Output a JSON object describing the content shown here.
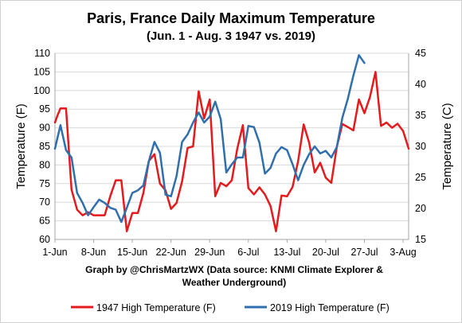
{
  "chart_data": {
    "type": "line",
    "title": "Paris, France Daily Maximum Temperature",
    "subtitle": "(Jun. 1 - Aug. 3 1947 vs. 2019)",
    "ylabel": "Temperature (F)",
    "y2label": "Temperature (C)",
    "ylim": [
      60,
      110
    ],
    "y2lim": [
      15,
      45
    ],
    "yticks": [
      "60",
      "65",
      "70",
      "75",
      "80",
      "85",
      "90",
      "95",
      "100",
      "105",
      "110"
    ],
    "y2ticks": [
      "15",
      "20",
      "25",
      "30",
      "35",
      "40",
      "45"
    ],
    "xlim": [
      1,
      65
    ],
    "xticks": [
      {
        "day": 1,
        "label": "1-Jun"
      },
      {
        "day": 8,
        "label": "8-Jun"
      },
      {
        "day": 15,
        "label": "15-Jun"
      },
      {
        "day": 22,
        "label": "22-Jun"
      },
      {
        "day": 29,
        "label": "29-Jun"
      },
      {
        "day": 36,
        "label": "6-Jul"
      },
      {
        "day": 43,
        "label": "13-Jul"
      },
      {
        "day": 50,
        "label": "20-Jul"
      },
      {
        "day": 57,
        "label": "27-Jul"
      },
      {
        "day": 64,
        "label": "3-Aug"
      }
    ],
    "credit_lines": [
      "Graph by @ChrisMartzWX (Data source:  KNMI Climate Explorer &",
      "Weather Underground)"
    ],
    "series": [
      {
        "name": "1947 High Temperature (F)",
        "color": "#e41a1c",
        "values": [
          [
            1,
            91.4
          ],
          [
            1.5,
            93.5
          ],
          [
            2,
            95.2
          ],
          [
            3,
            95.2
          ],
          [
            4,
            73.4
          ],
          [
            5,
            68.0
          ],
          [
            6,
            66.5
          ],
          [
            7,
            67.3
          ],
          [
            8,
            66.5
          ],
          [
            9,
            66.5
          ],
          [
            10,
            66.5
          ],
          [
            11,
            71.6
          ],
          [
            12,
            75.9
          ],
          [
            13,
            75.9
          ],
          [
            14,
            62.2
          ],
          [
            15,
            67.1
          ],
          [
            16,
            67.1
          ],
          [
            17,
            72.5
          ],
          [
            18,
            81.1
          ],
          [
            19,
            82.9
          ],
          [
            20,
            75.0
          ],
          [
            21,
            73.2
          ],
          [
            22,
            68.2
          ],
          [
            23,
            69.8
          ],
          [
            24,
            75.6
          ],
          [
            25,
            84.6
          ],
          [
            26,
            85.0
          ],
          [
            27,
            99.8
          ],
          [
            28,
            92.5
          ],
          [
            29,
            97.6
          ],
          [
            30,
            71.6
          ],
          [
            31,
            75.2
          ],
          [
            32,
            74.3
          ],
          [
            33,
            75.9
          ],
          [
            34,
            84.4
          ],
          [
            35,
            90.7
          ],
          [
            36,
            73.8
          ],
          [
            37,
            72.1
          ],
          [
            38,
            74.0
          ],
          [
            39,
            72.1
          ],
          [
            40,
            69.0
          ],
          [
            41,
            62.2
          ],
          [
            42,
            71.8
          ],
          [
            43,
            71.6
          ],
          [
            44,
            74.1
          ],
          [
            45,
            81.1
          ],
          [
            46,
            90.9
          ],
          [
            47,
            86.0
          ],
          [
            48,
            78.0
          ],
          [
            49,
            80.6
          ],
          [
            50,
            76.6
          ],
          [
            51,
            75.2
          ],
          [
            52,
            84.8
          ],
          [
            53,
            91.0
          ],
          [
            54,
            90.2
          ],
          [
            55,
            89.3
          ],
          [
            56,
            97.6
          ],
          [
            57,
            93.9
          ],
          [
            58,
            98.2
          ],
          [
            59,
            105.0
          ],
          [
            60,
            90.5
          ],
          [
            61,
            91.4
          ],
          [
            62,
            90.0
          ],
          [
            63,
            91.1
          ],
          [
            64,
            89.1
          ],
          [
            65,
            84.4
          ]
        ]
      },
      {
        "name": "2019 High Temperature (F)",
        "color": "#2f6fad",
        "values": [
          [
            1,
            84.4
          ],
          [
            2,
            90.7
          ],
          [
            3,
            84.0
          ],
          [
            4,
            82.0
          ],
          [
            5,
            72.5
          ],
          [
            6,
            69.8
          ],
          [
            7,
            66.5
          ],
          [
            8,
            68.7
          ],
          [
            9,
            70.7
          ],
          [
            10,
            69.8
          ],
          [
            11,
            68.5
          ],
          [
            12,
            68.0
          ],
          [
            13,
            64.7
          ],
          [
            14,
            68.5
          ],
          [
            15,
            72.5
          ],
          [
            16,
            73.2
          ],
          [
            17,
            74.5
          ],
          [
            18,
            81.1
          ],
          [
            19,
            86.2
          ],
          [
            20,
            83.3
          ],
          [
            21,
            72.0
          ],
          [
            22,
            71.6
          ],
          [
            23,
            77.0
          ],
          [
            24,
            86.2
          ],
          [
            25,
            88.2
          ],
          [
            26,
            91.4
          ],
          [
            27,
            94.1
          ],
          [
            28,
            91.4
          ],
          [
            29,
            93.0
          ],
          [
            30,
            97.0
          ],
          [
            31,
            92.3
          ],
          [
            32,
            78.0
          ],
          [
            33,
            80.2
          ],
          [
            34,
            82.0
          ],
          [
            35,
            82.0
          ],
          [
            36,
            90.5
          ],
          [
            37,
            90.2
          ],
          [
            38,
            86.0
          ],
          [
            39,
            77.7
          ],
          [
            40,
            79.2
          ],
          [
            41,
            83.1
          ],
          [
            42,
            84.8
          ],
          [
            43,
            84.0
          ],
          [
            44,
            80.2
          ],
          [
            45,
            75.9
          ],
          [
            46,
            80.0
          ],
          [
            47,
            82.9
          ],
          [
            48,
            85.0
          ],
          [
            49,
            83.1
          ],
          [
            50,
            83.8
          ],
          [
            51,
            82.0
          ],
          [
            52,
            84.8
          ],
          [
            53,
            92.7
          ],
          [
            54,
            97.8
          ],
          [
            55,
            104.0
          ],
          [
            56,
            109.5
          ],
          [
            57,
            107.4
          ]
        ]
      }
    ]
  }
}
